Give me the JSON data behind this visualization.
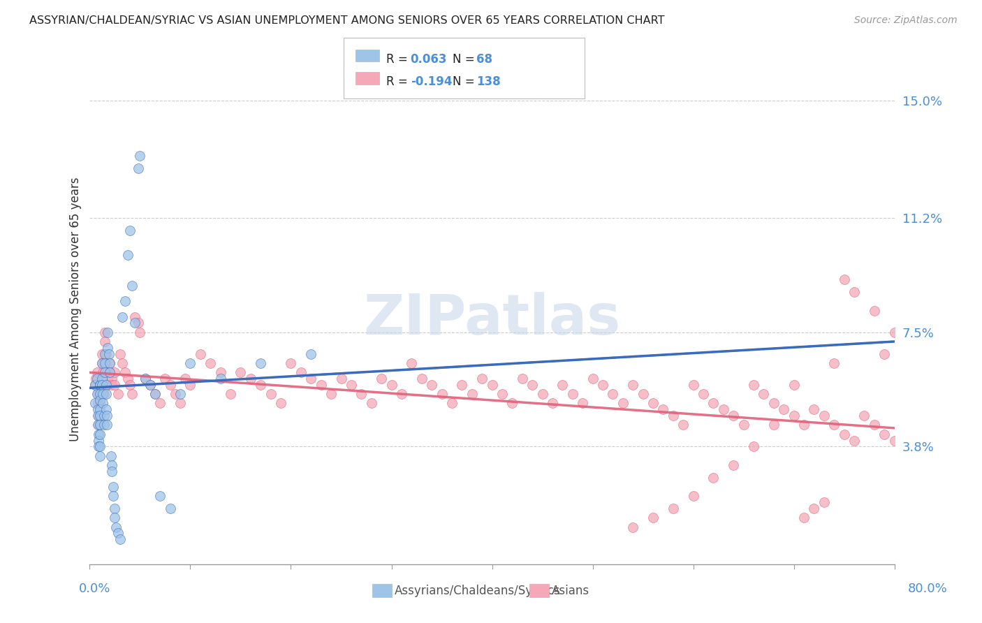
{
  "title": "ASSYRIAN/CHALDEAN/SYRIAC VS ASIAN UNEMPLOYMENT AMONG SENIORS OVER 65 YEARS CORRELATION CHART",
  "source": "Source: ZipAtlas.com",
  "ylabel": "Unemployment Among Seniors over 65 years",
  "ytick_labels": [
    "3.8%",
    "7.5%",
    "11.2%",
    "15.0%"
  ],
  "ytick_values": [
    0.038,
    0.075,
    0.112,
    0.15
  ],
  "xlim": [
    0.0,
    0.8
  ],
  "ylim": [
    0.0,
    0.165
  ],
  "legend_label_blue": "Assyrians/Chaldeans/Syriacs",
  "legend_label_pink": "Asians",
  "R_blue": "0.063",
  "N_blue": "68",
  "R_pink": "-0.194",
  "N_pink": "138",
  "color_blue": "#9ec4e8",
  "color_pink": "#f4a8b8",
  "color_blue_line": "#3a6bbf",
  "color_pink_line": "#e0607a",
  "color_accent": "#4a90d9",
  "watermark": "ZIPatlas",
  "blue_x": [
    0.005,
    0.005,
    0.007,
    0.007,
    0.008,
    0.008,
    0.008,
    0.009,
    0.009,
    0.009,
    0.01,
    0.01,
    0.01,
    0.01,
    0.01,
    0.01,
    0.01,
    0.01,
    0.01,
    0.01,
    0.012,
    0.012,
    0.012,
    0.013,
    0.013,
    0.014,
    0.014,
    0.015,
    0.015,
    0.015,
    0.016,
    0.016,
    0.016,
    0.017,
    0.017,
    0.018,
    0.018,
    0.019,
    0.02,
    0.02,
    0.021,
    0.022,
    0.022,
    0.023,
    0.023,
    0.025,
    0.025,
    0.026,
    0.028,
    0.03,
    0.032,
    0.035,
    0.038,
    0.04,
    0.042,
    0.045,
    0.048,
    0.05,
    0.055,
    0.06,
    0.065,
    0.07,
    0.08,
    0.09,
    0.1,
    0.13,
    0.17,
    0.22
  ],
  "blue_y": [
    0.052,
    0.058,
    0.06,
    0.055,
    0.05,
    0.048,
    0.045,
    0.042,
    0.04,
    0.038,
    0.058,
    0.058,
    0.055,
    0.053,
    0.05,
    0.048,
    0.045,
    0.042,
    0.038,
    0.035,
    0.065,
    0.06,
    0.058,
    0.055,
    0.052,
    0.048,
    0.045,
    0.068,
    0.065,
    0.062,
    0.058,
    0.055,
    0.05,
    0.048,
    0.045,
    0.075,
    0.07,
    0.068,
    0.065,
    0.062,
    0.035,
    0.032,
    0.03,
    0.025,
    0.022,
    0.018,
    0.015,
    0.012,
    0.01,
    0.008,
    0.08,
    0.085,
    0.1,
    0.108,
    0.09,
    0.078,
    0.128,
    0.132,
    0.06,
    0.058,
    0.055,
    0.022,
    0.018,
    0.055,
    0.065,
    0.06,
    0.065,
    0.068
  ],
  "pink_x": [
    0.005,
    0.006,
    0.007,
    0.008,
    0.008,
    0.009,
    0.009,
    0.01,
    0.01,
    0.01,
    0.01,
    0.01,
    0.012,
    0.012,
    0.013,
    0.013,
    0.014,
    0.015,
    0.015,
    0.016,
    0.016,
    0.017,
    0.018,
    0.018,
    0.02,
    0.02,
    0.022,
    0.022,
    0.025,
    0.025,
    0.028,
    0.03,
    0.032,
    0.035,
    0.038,
    0.04,
    0.042,
    0.045,
    0.048,
    0.05,
    0.055,
    0.06,
    0.065,
    0.07,
    0.075,
    0.08,
    0.085,
    0.09,
    0.095,
    0.1,
    0.11,
    0.12,
    0.13,
    0.14,
    0.15,
    0.16,
    0.17,
    0.18,
    0.19,
    0.2,
    0.21,
    0.22,
    0.23,
    0.24,
    0.25,
    0.26,
    0.27,
    0.28,
    0.29,
    0.3,
    0.31,
    0.32,
    0.33,
    0.34,
    0.35,
    0.36,
    0.37,
    0.38,
    0.39,
    0.4,
    0.41,
    0.42,
    0.43,
    0.44,
    0.45,
    0.46,
    0.47,
    0.48,
    0.49,
    0.5,
    0.51,
    0.52,
    0.53,
    0.54,
    0.55,
    0.56,
    0.57,
    0.58,
    0.59,
    0.6,
    0.61,
    0.62,
    0.63,
    0.64,
    0.65,
    0.66,
    0.67,
    0.68,
    0.69,
    0.7,
    0.71,
    0.72,
    0.73,
    0.74,
    0.75,
    0.76,
    0.77,
    0.78,
    0.79,
    0.8,
    0.8,
    0.79,
    0.78,
    0.76,
    0.75,
    0.74,
    0.73,
    0.72,
    0.71,
    0.7,
    0.68,
    0.66,
    0.64,
    0.62,
    0.6,
    0.58,
    0.56,
    0.54
  ],
  "pink_y": [
    0.058,
    0.06,
    0.062,
    0.055,
    0.052,
    0.048,
    0.045,
    0.058,
    0.055,
    0.052,
    0.048,
    0.045,
    0.068,
    0.065,
    0.062,
    0.058,
    0.055,
    0.075,
    0.072,
    0.068,
    0.065,
    0.062,
    0.06,
    0.058,
    0.065,
    0.062,
    0.06,
    0.058,
    0.062,
    0.058,
    0.055,
    0.068,
    0.065,
    0.062,
    0.06,
    0.058,
    0.055,
    0.08,
    0.078,
    0.075,
    0.06,
    0.058,
    0.055,
    0.052,
    0.06,
    0.058,
    0.055,
    0.052,
    0.06,
    0.058,
    0.068,
    0.065,
    0.062,
    0.055,
    0.062,
    0.06,
    0.058,
    0.055,
    0.052,
    0.065,
    0.062,
    0.06,
    0.058,
    0.055,
    0.06,
    0.058,
    0.055,
    0.052,
    0.06,
    0.058,
    0.055,
    0.065,
    0.06,
    0.058,
    0.055,
    0.052,
    0.058,
    0.055,
    0.06,
    0.058,
    0.055,
    0.052,
    0.06,
    0.058,
    0.055,
    0.052,
    0.058,
    0.055,
    0.052,
    0.06,
    0.058,
    0.055,
    0.052,
    0.058,
    0.055,
    0.052,
    0.05,
    0.048,
    0.045,
    0.058,
    0.055,
    0.052,
    0.05,
    0.048,
    0.045,
    0.058,
    0.055,
    0.052,
    0.05,
    0.048,
    0.045,
    0.05,
    0.048,
    0.045,
    0.042,
    0.04,
    0.048,
    0.045,
    0.042,
    0.04,
    0.075,
    0.068,
    0.082,
    0.088,
    0.092,
    0.065,
    0.02,
    0.018,
    0.015,
    0.058,
    0.045,
    0.038,
    0.032,
    0.028,
    0.022,
    0.018,
    0.015,
    0.012
  ]
}
